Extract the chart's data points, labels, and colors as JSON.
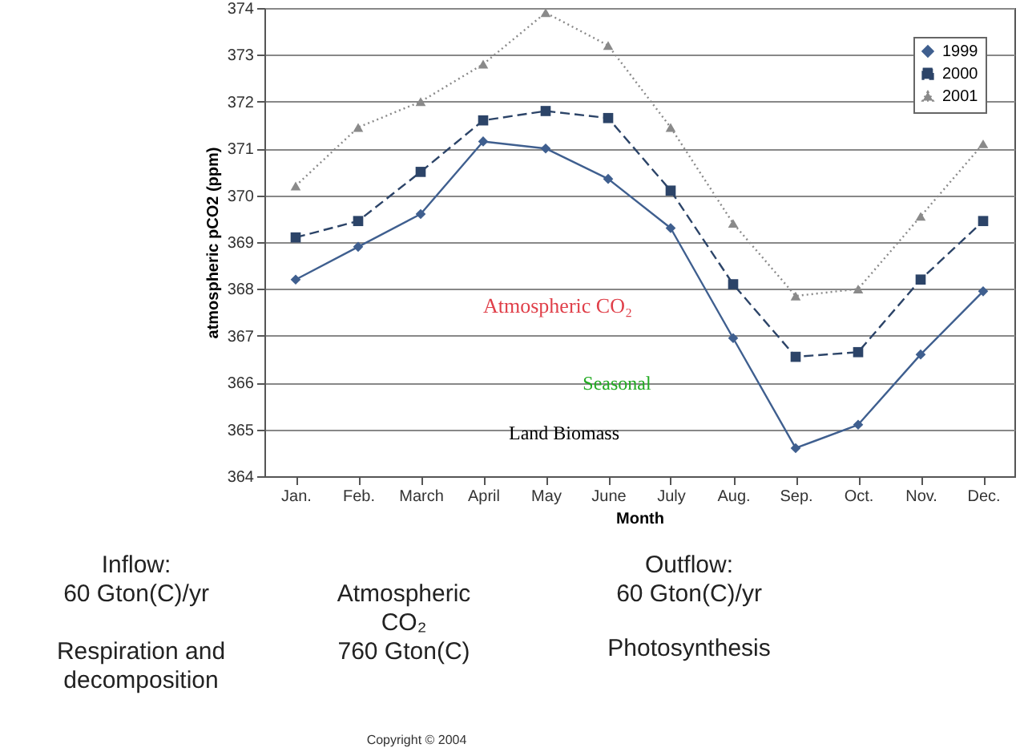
{
  "chart_data": {
    "type": "line",
    "xlabel": "Month",
    "ylabel": "atmospheric pCO2 (ppm)",
    "categories": [
      "Jan.",
      "Feb.",
      "March",
      "April",
      "May",
      "June",
      "July",
      "Aug.",
      "Sep.",
      "Oct.",
      "Nov.",
      "Dec."
    ],
    "series": [
      {
        "name": "1999",
        "color": "#3f5f8f",
        "marker": "diamond",
        "line_style": "solid",
        "values": [
          368.2,
          368.9,
          369.6,
          371.15,
          371.0,
          370.35,
          369.3,
          366.95,
          364.6,
          365.1,
          366.6,
          367.95
        ]
      },
      {
        "name": "2000",
        "color": "#2c4468",
        "marker": "square",
        "line_style": "dashed",
        "values": [
          369.1,
          369.45,
          370.5,
          371.6,
          371.8,
          371.65,
          370.1,
          368.1,
          366.55,
          366.65,
          368.2,
          369.45
        ]
      },
      {
        "name": "2001",
        "color": "#8a8a8a",
        "marker": "triangle",
        "line_style": "dotted",
        "values": [
          370.2,
          371.45,
          372.0,
          372.8,
          373.9,
          373.2,
          371.45,
          369.4,
          367.85,
          368.0,
          369.55,
          371.1
        ]
      }
    ],
    "ylim": [
      364,
      374
    ],
    "yticks": [
      364,
      365,
      366,
      367,
      368,
      369,
      370,
      371,
      372,
      373,
      374
    ],
    "grid": "y",
    "legend": "top right",
    "annotations": [
      "Atmospheric CO₂",
      "Seasonal",
      "Land Biomass",
      "Inflow:\n60 Gton(C)/yr",
      "Respiration and\ndecomposition",
      "Atmospheric\nCO₂\n760 Gton(C)",
      "Outflow:\n60 Gton(C)/yr",
      "Photosynthesis",
      "Copyright © 2004"
    ]
  }
}
